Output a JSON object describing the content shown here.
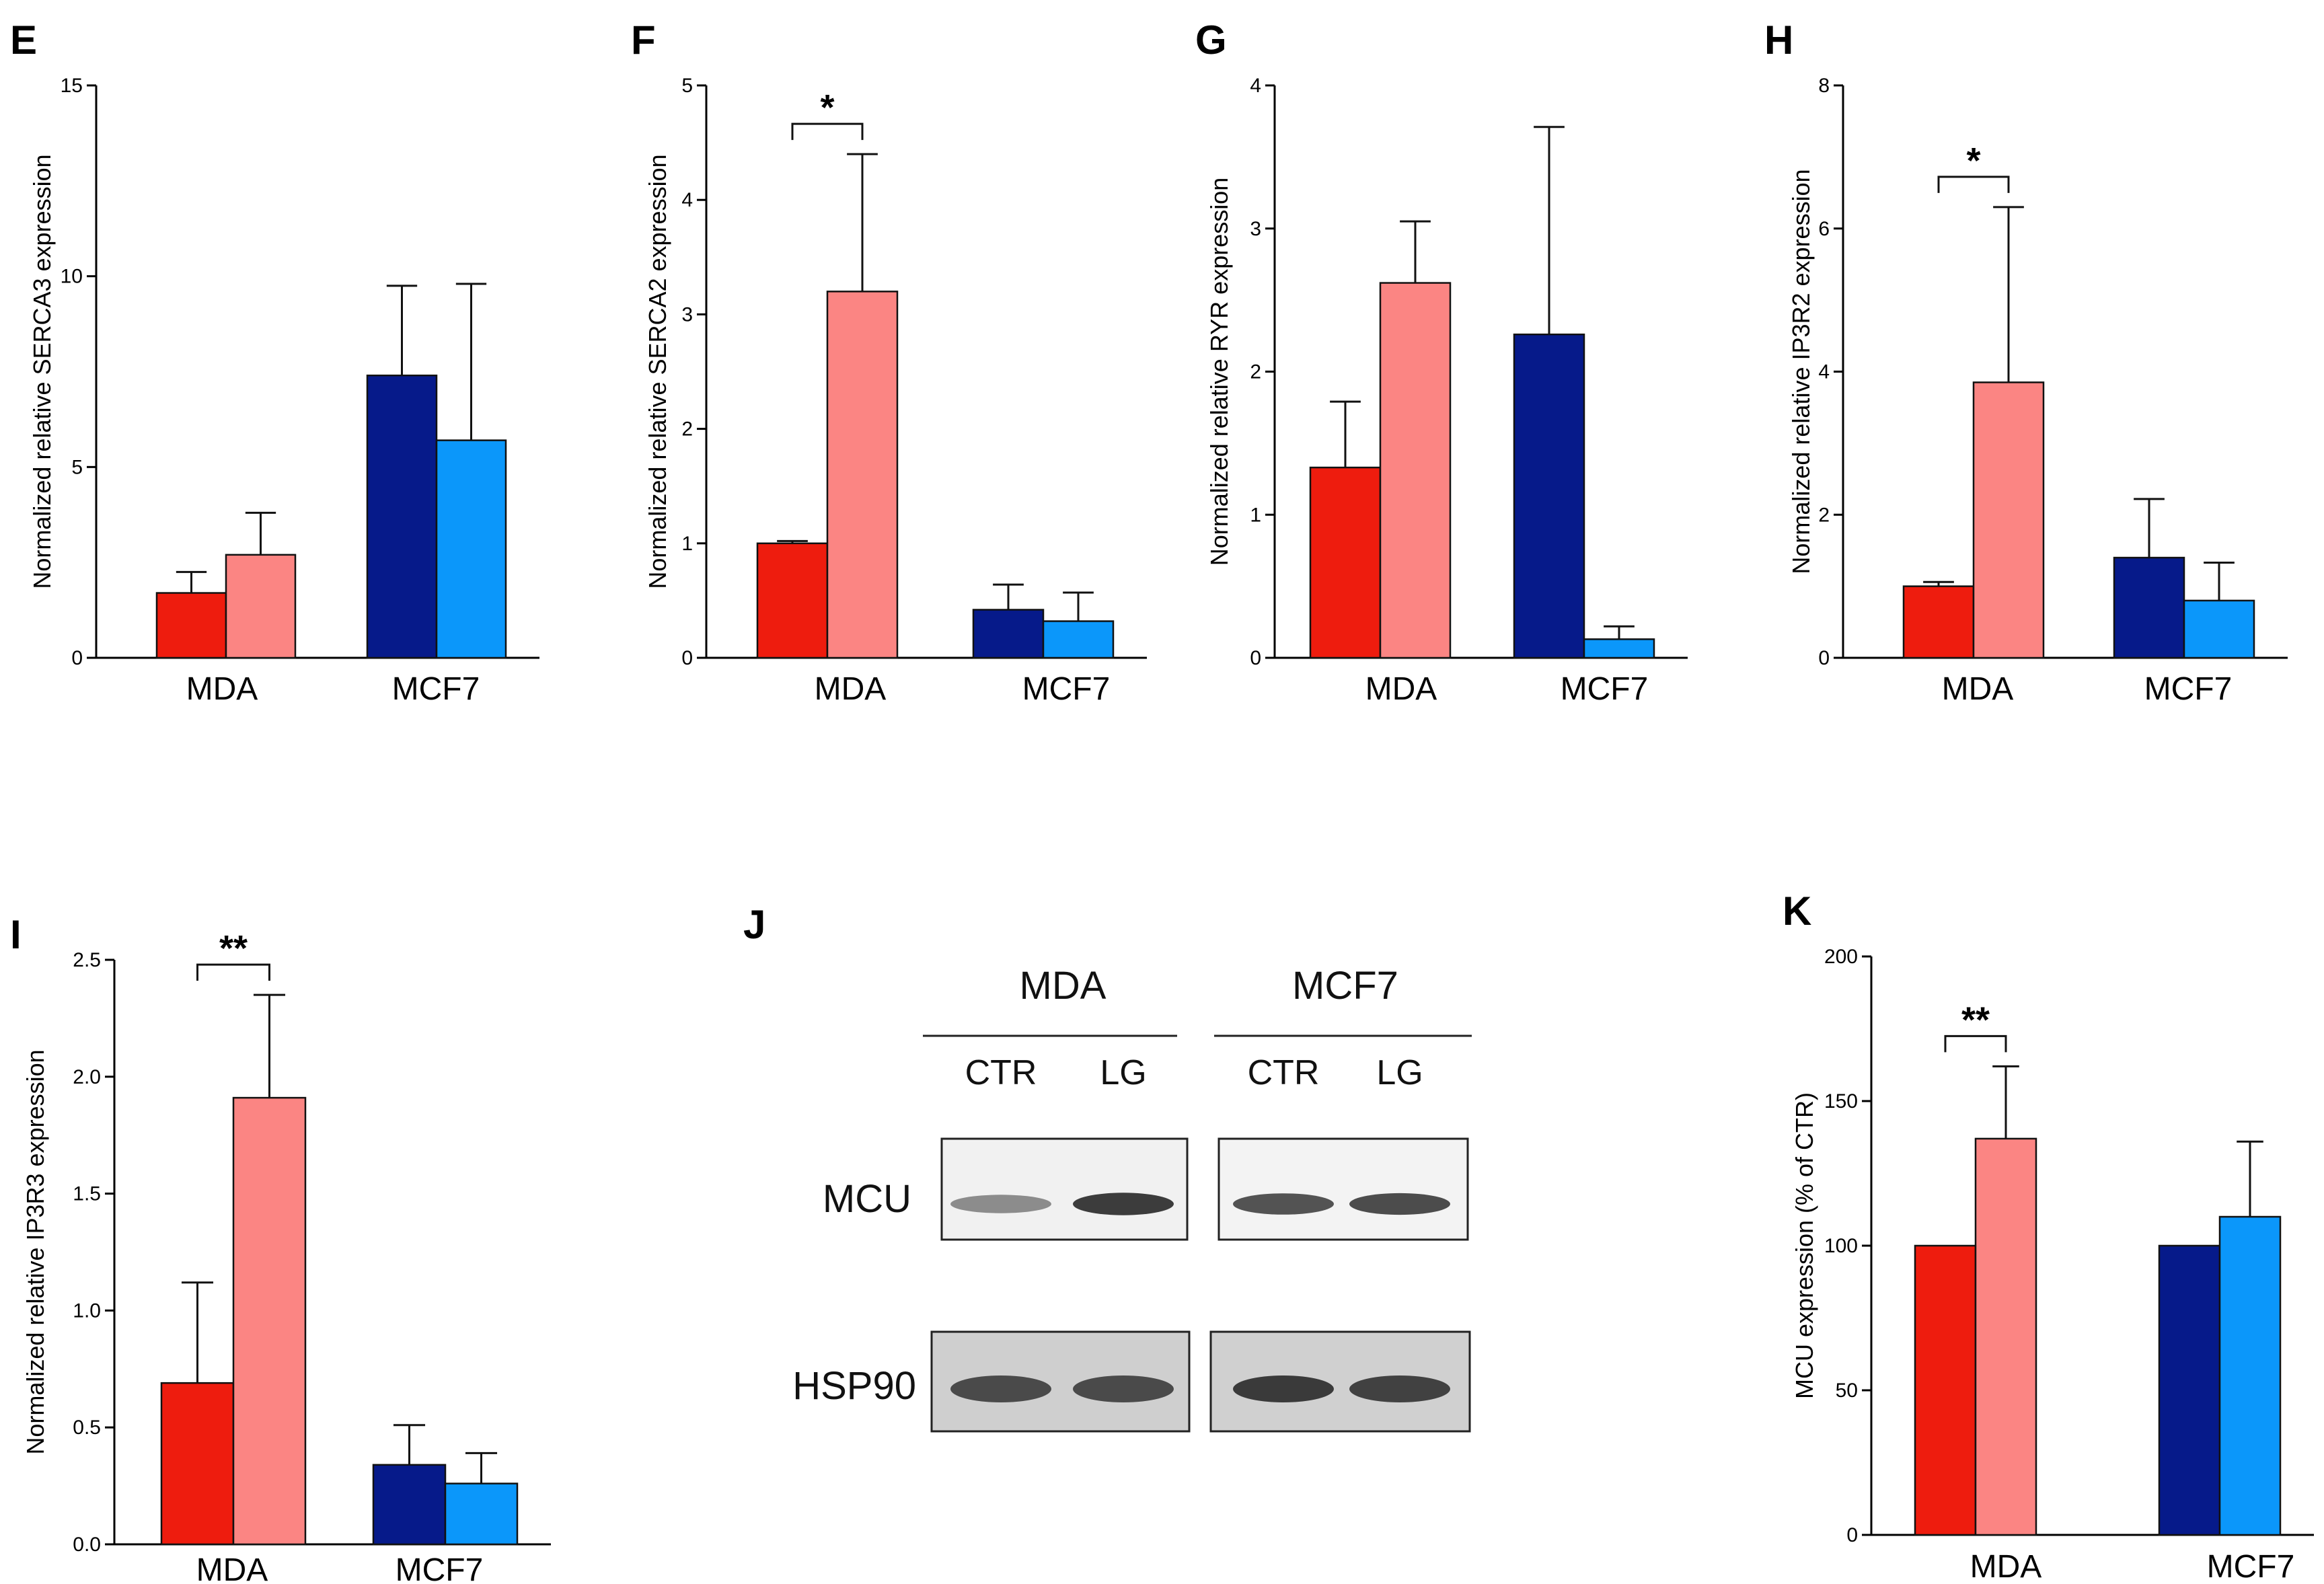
{
  "colors": {
    "mda_ctr": "#ee1c0e",
    "mda_lg": "#fb8583",
    "mcf7_ctr": "#061a8a",
    "mcf7_lg": "#0b97fa"
  },
  "chart_data": [
    {
      "type": "bar",
      "panel": "E",
      "categories": [
        "MDA",
        "MCF7"
      ],
      "series": [
        {
          "name": "CTR",
          "values": [
            1.7,
            7.4
          ],
          "errors": [
            0.55,
            2.35
          ]
        },
        {
          "name": "LG",
          "values": [
            2.7,
            5.7
          ],
          "errors": [
            1.1,
            4.1
          ]
        }
      ],
      "ylabel": "Normalized relative SERCA3 expression",
      "ylim": [
        0,
        15
      ],
      "ticks": [
        "0",
        "5",
        "10",
        "15"
      ],
      "significance": []
    },
    {
      "type": "bar",
      "panel": "F",
      "categories": [
        "MDA",
        "MCF7"
      ],
      "series": [
        {
          "name": "CTR",
          "values": [
            1.0,
            0.42
          ],
          "errors": [
            0.02,
            0.22
          ]
        },
        {
          "name": "LG",
          "values": [
            3.2,
            0.32
          ],
          "errors": [
            1.2,
            0.25
          ]
        }
      ],
      "ylabel": "Normalized relative SERCA2 expression",
      "ylim": [
        0,
        5
      ],
      "ticks": [
        "0",
        "1",
        "2",
        "3",
        "4",
        "5"
      ],
      "significance": [
        {
          "category": "MDA",
          "label": "*"
        }
      ]
    },
    {
      "type": "bar",
      "panel": "G",
      "categories": [
        "MDA",
        "MCF7"
      ],
      "series": [
        {
          "name": "CTR",
          "values": [
            1.33,
            2.26
          ],
          "errors": [
            0.46,
            1.45
          ]
        },
        {
          "name": "LG",
          "values": [
            2.62,
            0.13
          ],
          "errors": [
            0.43,
            0.09
          ]
        }
      ],
      "ylabel": "Normalized relative RYR expression",
      "ylim": [
        0,
        4
      ],
      "ticks": [
        "0",
        "1",
        "2",
        "3",
        "4"
      ],
      "significance": []
    },
    {
      "type": "bar",
      "panel": "H",
      "categories": [
        "MDA",
        "MCF7"
      ],
      "series": [
        {
          "name": "CTR",
          "values": [
            1.0,
            1.4
          ],
          "errors": [
            0.06,
            0.82
          ]
        },
        {
          "name": "LG",
          "values": [
            3.85,
            0.8
          ],
          "errors": [
            2.45,
            0.53
          ]
        }
      ],
      "ylabel": "Normalized relative IP3R2 expression",
      "ylim": [
        0,
        8
      ],
      "ticks": [
        "0",
        "2",
        "4",
        "6",
        "8"
      ],
      "significance": [
        {
          "category": "MDA",
          "label": "*"
        }
      ]
    },
    {
      "type": "bar",
      "panel": "I",
      "categories": [
        "MDA",
        "MCF7"
      ],
      "series": [
        {
          "name": "CTR",
          "values": [
            0.69,
            0.34
          ],
          "errors": [
            0.43,
            0.17
          ]
        },
        {
          "name": "LG",
          "values": [
            1.91,
            0.26
          ],
          "errors": [
            0.44,
            0.13
          ]
        }
      ],
      "ylabel": "Normalized relative IP3R3 expression",
      "ylim": [
        0,
        2.5
      ],
      "ticks": [
        "0.0",
        "0.5",
        "1.0",
        "1.5",
        "2.0",
        "2.5"
      ],
      "significance": [
        {
          "category": "MDA",
          "label": "**"
        }
      ]
    },
    {
      "type": "bar",
      "panel": "K",
      "categories": [
        "MDA",
        "MCF7"
      ],
      "series": [
        {
          "name": "CTR",
          "values": [
            100,
            100
          ],
          "errors": [
            0,
            0
          ]
        },
        {
          "name": "LG",
          "values": [
            137,
            110
          ],
          "errors": [
            25,
            26
          ]
        }
      ],
      "ylabel": "MCU expression (% of CTR)",
      "ylim": [
        0,
        200
      ],
      "ticks": [
        "0",
        "50",
        "100",
        "150",
        "200"
      ],
      "significance": [
        {
          "category": "MDA",
          "label": "**"
        }
      ]
    }
  ],
  "blot": {
    "panel": "J",
    "groups": [
      "MDA",
      "MCF7"
    ],
    "lanes": [
      "CTR",
      "LG",
      "CTR",
      "LG"
    ],
    "rows": [
      {
        "name": "MCU",
        "intensities": [
          0.45,
          0.95,
          0.8,
          0.85
        ]
      },
      {
        "name": "HSP90",
        "intensities": [
          0.85,
          0.85,
          0.95,
          0.9
        ]
      }
    ]
  }
}
